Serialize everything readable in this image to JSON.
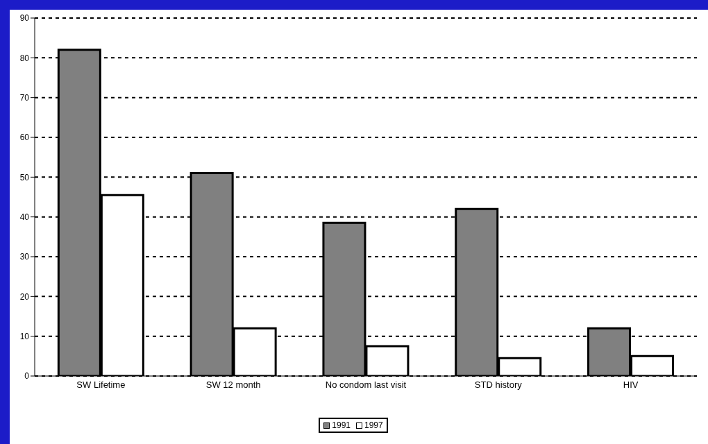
{
  "chart_data": {
    "type": "bar",
    "categories": [
      "SW Lifetime",
      "SW 12 month",
      "No condom last visit",
      "STD history",
      "HIV"
    ],
    "series": [
      {
        "name": "1991",
        "color": "#808080",
        "values": [
          82,
          51,
          38.5,
          42,
          12
        ]
      },
      {
        "name": "1997",
        "color": "#ffffff",
        "values": [
          45.5,
          12,
          7.5,
          4.5,
          5
        ]
      }
    ],
    "ylim": [
      0,
      90
    ],
    "yticks": [
      0,
      10,
      20,
      30,
      40,
      50,
      60,
      70,
      80,
      90
    ],
    "grid": "y",
    "legend": "bottom"
  }
}
